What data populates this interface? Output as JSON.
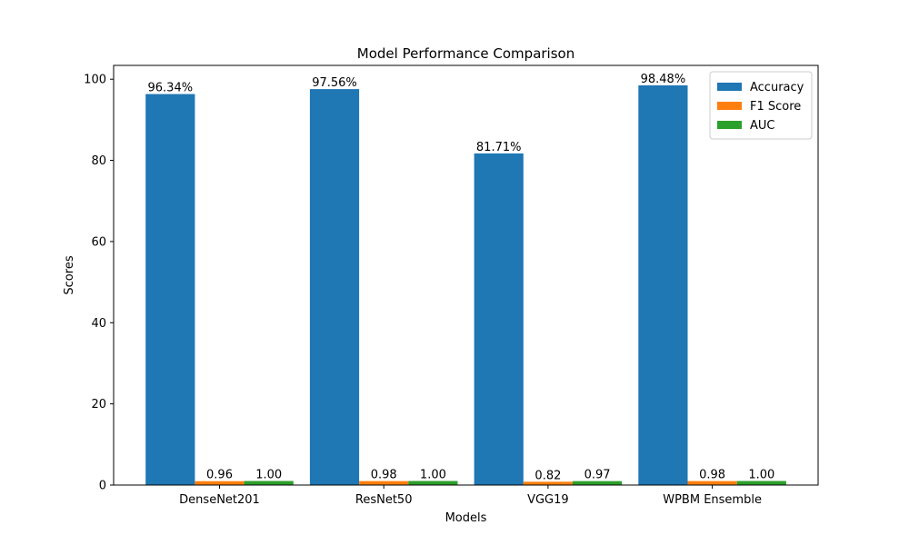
{
  "chart_data": {
    "type": "bar",
    "title": "Model Performance Comparison",
    "xlabel": "Models",
    "ylabel": "Scores",
    "categories": [
      "DenseNet201",
      "ResNet50",
      "VGG19",
      "WPBM Ensemble"
    ],
    "series": [
      {
        "name": "Accuracy",
        "color": "#1f77b4",
        "values": [
          96.34,
          97.56,
          81.71,
          98.48
        ],
        "labels": [
          "96.34%",
          "97.56%",
          "81.71%",
          "98.48%"
        ]
      },
      {
        "name": "F1 Score",
        "color": "#ff7f0e",
        "values": [
          0.96,
          0.98,
          0.82,
          0.98
        ],
        "labels": [
          "0.96",
          "0.98",
          "0.82",
          "0.98"
        ]
      },
      {
        "name": "AUC",
        "color": "#2ca02c",
        "values": [
          1.0,
          1.0,
          0.97,
          1.0
        ],
        "labels": [
          "1.00",
          "1.00",
          "0.97",
          "1.00"
        ]
      }
    ],
    "ylim": [
      0,
      103.4
    ],
    "yticks": [
      0,
      20,
      40,
      60,
      80,
      100
    ],
    "grid": false,
    "legend_position": "top-right"
  }
}
